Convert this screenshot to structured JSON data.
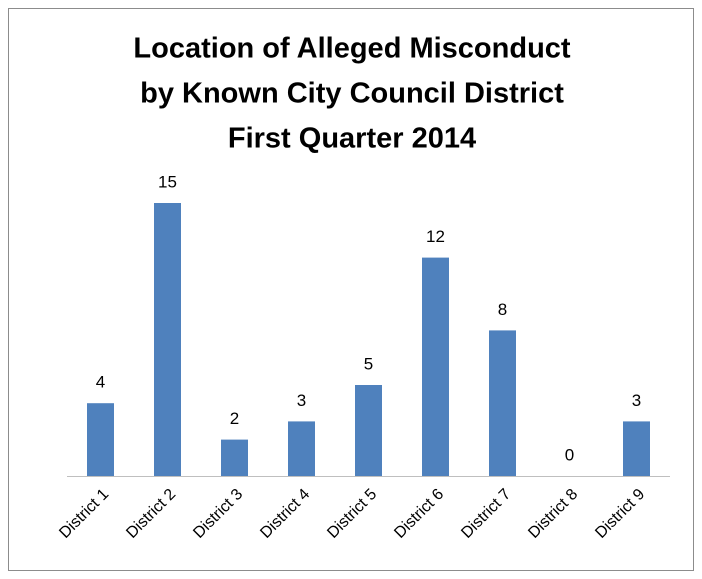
{
  "chart_data": {
    "type": "bar",
    "title": [
      "Location of Alleged Misconduct",
      "by Known City Council District",
      "First Quarter 2014"
    ],
    "categories": [
      "District 1",
      "District 2",
      "District 3",
      "District 4",
      "District 5",
      "District 6",
      "District 7",
      "District 8",
      "District 9"
    ],
    "values": [
      4,
      15,
      2,
      3,
      5,
      12,
      8,
      0,
      3
    ],
    "color": "#4f81bd"
  }
}
